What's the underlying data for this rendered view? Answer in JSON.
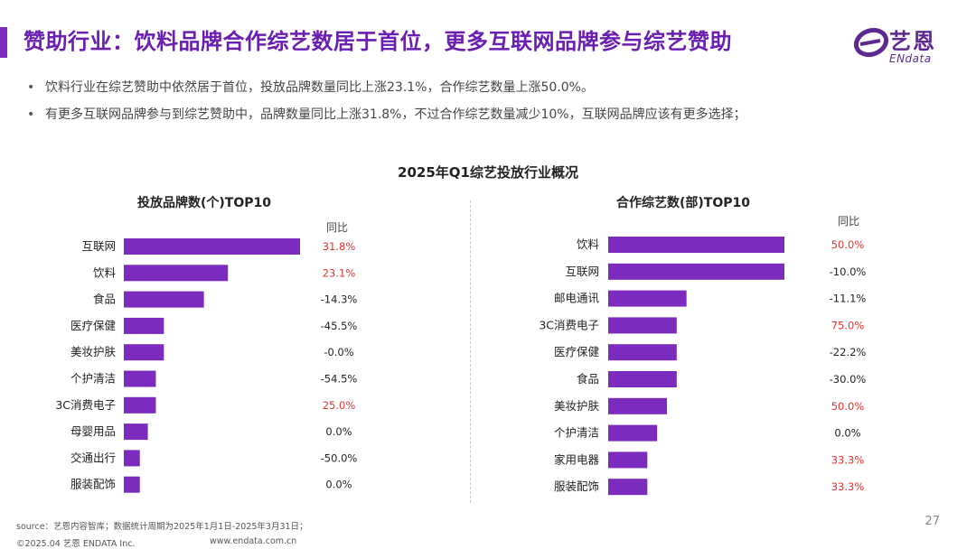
{
  "header": {
    "title": "赞助行业：饮料品牌合作综艺数居于首位，更多互联网品牌参与综艺赞助",
    "logo_cn": "艺恩",
    "logo_en": "ENdata"
  },
  "bullets": [
    "饮料行业在综艺赞助中依然居于首位，投放品牌数量同比上涨23.1%，合作综艺数量上涨50.0%。",
    "有更多互联网品牌参与到综艺赞助中，品牌数量同比上涨31.8%，不过合作综艺数量减少10%，互联网品牌应该有更多选择；"
  ],
  "chart_title": "2025年Q1综艺投放行业概况",
  "yoy_header": "同比",
  "colors": {
    "bar": "#7b2cbf",
    "positive": "#e0342f",
    "neutral": "#222222",
    "title": "#6a1fb0"
  },
  "chart_data": [
    {
      "type": "bar",
      "orientation": "horizontal",
      "title": "投放品牌数(个)TOP10",
      "categories": [
        "互联网",
        "饮料",
        "食品",
        "医疗保健",
        "美妆护肤",
        "个护清洁",
        "3C消费电子",
        "母婴用品",
        "交通出行",
        "服装配饰"
      ],
      "values": [
        22,
        13,
        10,
        5,
        5,
        4,
        4,
        3,
        2,
        2
      ],
      "yoy": [
        "31.8%",
        "23.1%",
        "-14.3%",
        "-45.5%",
        "-0.0%",
        "-54.5%",
        "25.0%",
        "0.0%",
        "-50.0%",
        "0.0%"
      ],
      "yoy_highlight": [
        true,
        true,
        false,
        false,
        false,
        false,
        true,
        false,
        false,
        false
      ],
      "xlim": [
        0,
        22
      ]
    },
    {
      "type": "bar",
      "orientation": "horizontal",
      "title": "合作综艺数(部)TOP10",
      "categories": [
        "饮料",
        "互联网",
        "邮电通讯",
        "3C消费电子",
        "医疗保健",
        "食品",
        "美妆护肤",
        "个护清洁",
        "家用电器",
        "服装配饰"
      ],
      "values": [
        18,
        18,
        8,
        7,
        7,
        7,
        6,
        5,
        4,
        4
      ],
      "yoy": [
        "50.0%",
        "-10.0%",
        "-11.1%",
        "75.0%",
        "-22.2%",
        "-30.0%",
        "50.0%",
        "0.0%",
        "33.3%",
        "33.3%"
      ],
      "yoy_highlight": [
        true,
        false,
        false,
        true,
        false,
        false,
        true,
        false,
        true,
        true
      ],
      "xlim": [
        0,
        18
      ]
    }
  ],
  "footer": {
    "source": "source：艺恩内容智库；数据统计周期为2025年1月1日-2025年3月31日；",
    "copyright": "©2025.04 艺恩 ENDATA Inc.",
    "website": "www.endata.com.cn",
    "page_number": "27"
  }
}
